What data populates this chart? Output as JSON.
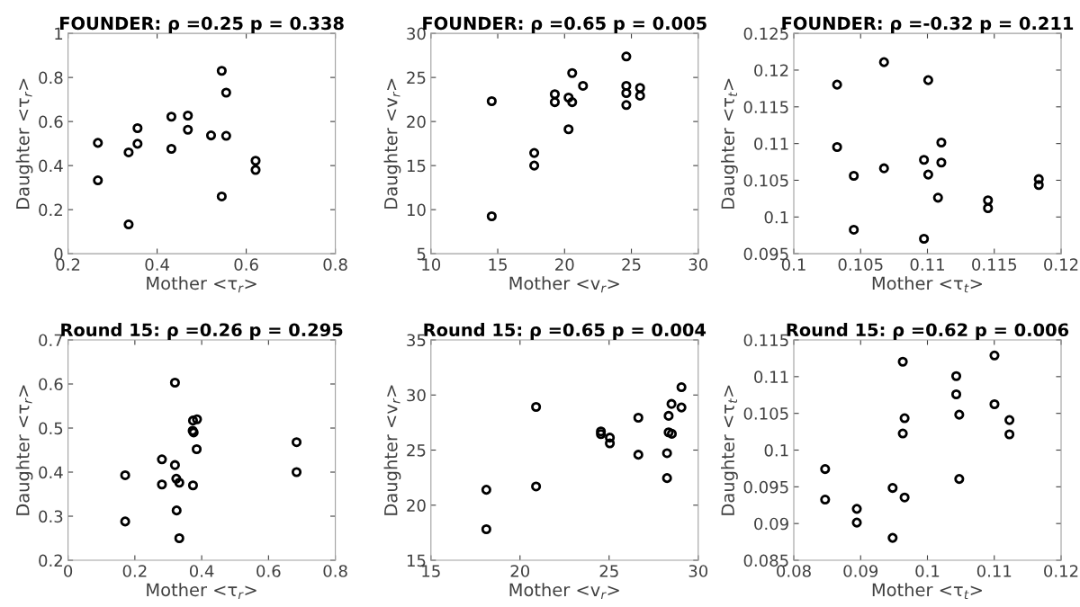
{
  "chart_data": [
    {
      "type": "scatter",
      "title": "FOUNDER: ρ =0.25 p = 0.338",
      "xlabel": "Mother <τ$_{r}$>",
      "ylabel": "Daughter <τ$_{r}$>",
      "marker": "circle",
      "grid": false,
      "xlim": [
        0.2,
        0.8
      ],
      "xticks": [
        0.2,
        0.4,
        0.6,
        0.8
      ],
      "ylim": [
        0,
        1
      ],
      "yticks": [
        0,
        0.2,
        0.4,
        0.6,
        0.8,
        1
      ],
      "series": [
        {
          "color": "#000000",
          "x": [
            0.267,
            0.267,
            0.336,
            0.336,
            0.356,
            0.356,
            0.432,
            0.432,
            0.469,
            0.469,
            0.521,
            0.545,
            0.545,
            0.555,
            0.555,
            0.621,
            0.621
          ],
          "values": [
            0.503,
            0.333,
            0.46,
            0.133,
            0.57,
            0.499,
            0.622,
            0.476,
            0.627,
            0.563,
            0.537,
            0.83,
            0.26,
            0.731,
            0.535,
            0.422,
            0.38
          ]
        }
      ]
    },
    {
      "type": "scatter",
      "title": "FOUNDER: ρ =0.65 p = 0.005",
      "xlabel": "Mother <v$_{r}$>",
      "ylabel": "Daughter <v$_{r}$>",
      "marker": "circle",
      "grid": false,
      "xlim": [
        10,
        30
      ],
      "xticks": [
        10,
        15,
        20,
        25,
        30
      ],
      "ylim": [
        5,
        30
      ],
      "yticks": [
        5,
        10,
        15,
        20,
        25,
        30
      ],
      "series": [
        {
          "color": "#000000",
          "x": [
            14.55,
            14.55,
            17.73,
            17.73,
            19.27,
            19.27,
            20.3,
            20.3,
            20.57,
            20.57,
            21.38,
            24.62,
            24.62,
            24.62,
            24.62,
            25.65,
            25.65
          ],
          "values": [
            22.31,
            9.25,
            16.43,
            15.0,
            23.1,
            22.2,
            22.72,
            19.12,
            25.5,
            22.2,
            24.05,
            27.38,
            24.05,
            23.23,
            21.87,
            23.81,
            22.93
          ]
        }
      ]
    },
    {
      "type": "scatter",
      "title": "FOUNDER: ρ =-0.32 p = 0.211",
      "xlabel": "Mother <τ$_{t}$>",
      "ylabel": "Daughter <τ$_{t}$>",
      "marker": "circle",
      "grid": false,
      "xlim": [
        0.1,
        0.12
      ],
      "xticks": [
        0.1,
        0.105,
        0.11,
        0.115,
        0.12
      ],
      "ylim": [
        0.095,
        0.125
      ],
      "yticks": [
        0.095,
        0.1,
        0.105,
        0.11,
        0.115,
        0.12,
        0.125
      ],
      "series": [
        {
          "color": "#000000",
          "x": [
            0.10324,
            0.10324,
            0.10449,
            0.10449,
            0.10675,
            0.10675,
            0.10974,
            0.10974,
            0.11006,
            0.11006,
            0.11079,
            0.11104,
            0.11104,
            0.11453,
            0.11453,
            0.11833,
            0.11833
          ],
          "values": [
            0.11802,
            0.10953,
            0.10561,
            0.09827,
            0.12108,
            0.10663,
            0.10778,
            0.09704,
            0.11863,
            0.10578,
            0.10263,
            0.11014,
            0.10741,
            0.10227,
            0.1012,
            0.10516,
            0.10435
          ]
        }
      ]
    },
    {
      "type": "scatter",
      "title": "Round 15: ρ =0.26 p = 0.295",
      "xlabel": "Mother <τ$_{r}$>",
      "ylabel": "Daughter <τ$_{r}$>",
      "marker": "circle",
      "grid": false,
      "xlim": [
        0,
        0.8
      ],
      "xticks": [
        0,
        0.2,
        0.4,
        0.6,
        0.8
      ],
      "ylim": [
        0.2,
        0.7
      ],
      "yticks": [
        0.2,
        0.3,
        0.4,
        0.5,
        0.6,
        0.7
      ],
      "series": [
        {
          "color": "#000000",
          "x": [
            0.171,
            0.171,
            0.281,
            0.281,
            0.32,
            0.32,
            0.324,
            0.325,
            0.333,
            0.333,
            0.374,
            0.374,
            0.386,
            0.373,
            0.376,
            0.385,
            0.684,
            0.684
          ],
          "values": [
            0.393,
            0.288,
            0.429,
            0.372,
            0.603,
            0.416,
            0.385,
            0.313,
            0.376,
            0.25,
            0.37,
            0.517,
            0.52,
            0.494,
            0.49,
            0.452,
            0.468,
            0.4
          ]
        }
      ]
    },
    {
      "type": "scatter",
      "title": "Round 15: ρ =0.65 p = 0.004",
      "xlabel": "Mother <v$_{r}$>",
      "ylabel": "Daughter <v$_{r}$>",
      "marker": "circle",
      "grid": false,
      "xlim": [
        15,
        30
      ],
      "xticks": [
        15,
        20,
        25,
        30
      ],
      "ylim": [
        15,
        35
      ],
      "yticks": [
        15,
        20,
        25,
        30,
        35
      ],
      "series": [
        {
          "color": "#000000",
          "x": [
            18.11,
            18.11,
            20.9,
            20.9,
            24.54,
            24.54,
            25.04,
            25.04,
            26.64,
            26.64,
            28.25,
            28.25,
            28.34,
            28.34,
            28.52,
            28.5,
            29.06,
            29.06
          ],
          "values": [
            21.4,
            17.82,
            28.92,
            21.7,
            26.7,
            26.45,
            26.13,
            25.61,
            27.94,
            24.58,
            24.72,
            22.46,
            28.11,
            26.61,
            26.48,
            29.19,
            30.71,
            28.87
          ]
        }
      ]
    },
    {
      "type": "scatter",
      "title": "Round 15: ρ =0.62 p = 0.006",
      "xlabel": "Mother <τ$_{t}$>",
      "ylabel": "Daughter <τ$_{t}$>",
      "marker": "circle",
      "grid": false,
      "xlim": [
        0.08,
        0.12
      ],
      "xticks": [
        0.08,
        0.09,
        0.1,
        0.11,
        0.12
      ],
      "ylim": [
        0.085,
        0.115
      ],
      "yticks": [
        0.085,
        0.09,
        0.095,
        0.1,
        0.105,
        0.11,
        0.115
      ],
      "series": [
        {
          "color": "#000000",
          "x": [
            0.08469,
            0.08469,
            0.08943,
            0.08943,
            0.09479,
            0.09479,
            0.09631,
            0.09631,
            0.09658,
            0.09658,
            0.10431,
            0.10431,
            0.10476,
            0.10476,
            0.11003,
            0.11003,
            0.11227,
            0.11227
          ],
          "values": [
            0.09742,
            0.09326,
            0.092,
            0.09013,
            0.09485,
            0.08805,
            0.11203,
            0.10226,
            0.10434,
            0.09355,
            0.11007,
            0.10759,
            0.10482,
            0.09607,
            0.11288,
            0.10625,
            0.10409,
            0.10214
          ]
        }
      ]
    }
  ]
}
